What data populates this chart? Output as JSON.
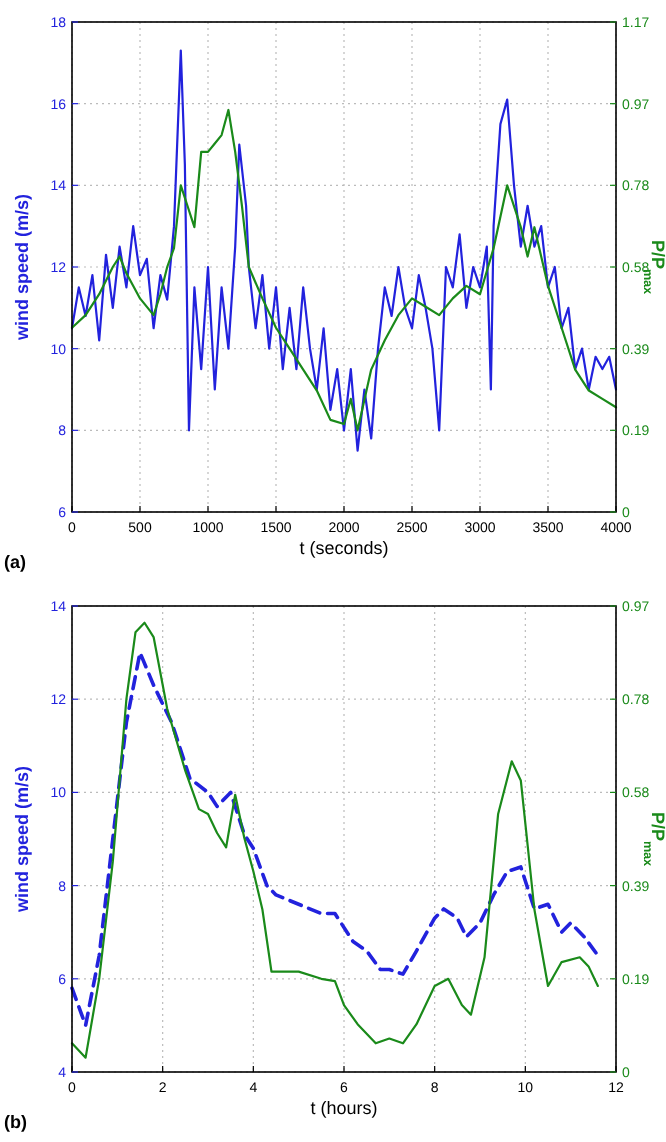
{
  "chart_data": [
    {
      "type": "line",
      "xlabel": "t (seconds)",
      "ylabel": "wind speed (m/s)",
      "y2label": "P/P$_{max}$",
      "annotations": [
        "(a)"
      ],
      "grid": true,
      "xlim": [
        0,
        4000
      ],
      "xticks": [
        0,
        500,
        1000,
        1500,
        2000,
        2500,
        3000,
        3500,
        4000
      ],
      "ylim": [
        6,
        18
      ],
      "yticks": [
        6,
        8,
        10,
        12,
        14,
        16,
        18
      ],
      "y2lim": [
        0,
        1.17
      ],
      "y2ticks": [
        0,
        {
          "value": 0.195,
          "label": "0.19"
        },
        0.39,
        {
          "value": 0.585,
          "label": "0.58"
        },
        0.78,
        {
          "value": 0.975,
          "label": "0.97"
        },
        1.17
      ],
      "series": [
        {
          "color": "#2222dd",
          "line_style": "solid",
          "x": [
            0,
            50,
            100,
            150,
            200,
            250,
            300,
            350,
            400,
            450,
            500,
            550,
            600,
            650,
            700,
            750,
            800,
            830,
            860,
            900,
            950,
            1000,
            1050,
            1100,
            1150,
            1200,
            1230,
            1280,
            1300,
            1350,
            1400,
            1450,
            1500,
            1550,
            1600,
            1650,
            1700,
            1750,
            1800,
            1850,
            1900,
            1950,
            2000,
            2050,
            2100,
            2150,
            2200,
            2250,
            2300,
            2350,
            2400,
            2450,
            2500,
            2550,
            2600,
            2650,
            2700,
            2750,
            2800,
            2850,
            2900,
            2950,
            3000,
            3050,
            3080,
            3100,
            3150,
            3200,
            3250,
            3300,
            3350,
            3400,
            3450,
            3500,
            3550,
            3600,
            3650,
            3700,
            3750,
            3800,
            3850,
            3900,
            3950,
            4000
          ],
          "values": [
            10.5,
            11.5,
            10.8,
            11.8,
            10.2,
            12.3,
            11,
            12.5,
            11.5,
            13,
            11.8,
            12.2,
            10.5,
            11.8,
            11.2,
            13,
            17.3,
            14.5,
            8,
            11.5,
            9.5,
            12,
            9,
            11.5,
            10,
            12.5,
            15,
            13.5,
            12,
            10.5,
            11.8,
            10,
            11.5,
            9.5,
            11,
            9.5,
            11.5,
            10,
            9,
            10.5,
            8.5,
            9.5,
            8,
            9.5,
            7.5,
            9,
            7.8,
            10,
            11.5,
            10.8,
            12,
            11,
            10.5,
            11.8,
            11,
            10,
            8,
            12,
            11.5,
            12.8,
            11,
            12,
            11.5,
            12.5,
            9,
            13,
            15.5,
            16.1,
            14,
            12.5,
            13.5,
            12.5,
            13,
            11.5,
            12,
            10.5,
            11,
            9.5,
            10,
            9,
            9.8,
            9.5,
            9.8,
            9
          ]
        },
        {
          "color": "#1a8a1a",
          "axis": "y2",
          "line_style": "solid",
          "x": [
            0,
            100,
            200,
            300,
            350,
            400,
            500,
            600,
            650,
            700,
            750,
            800,
            850,
            900,
            950,
            1000,
            1050,
            1100,
            1150,
            1200,
            1250,
            1300,
            1400,
            1500,
            1600,
            1700,
            1800,
            1900,
            2000,
            2050,
            2100,
            2200,
            2300,
            2400,
            2500,
            2600,
            2700,
            2800,
            2900,
            3000,
            3100,
            3200,
            3300,
            3350,
            3400,
            3500,
            3600,
            3700,
            3800,
            3900,
            4000
          ],
          "values": [
            0.44,
            0.47,
            0.52,
            0.585,
            0.61,
            0.57,
            0.51,
            0.47,
            0.52,
            0.585,
            0.63,
            0.78,
            0.73,
            0.68,
            0.86,
            0.86,
            0.88,
            0.9,
            0.96,
            0.86,
            0.73,
            0.585,
            0.51,
            0.44,
            0.39,
            0.34,
            0.29,
            0.22,
            0.21,
            0.27,
            0.195,
            0.34,
            0.41,
            0.47,
            0.51,
            0.49,
            0.47,
            0.51,
            0.54,
            0.52,
            0.63,
            0.78,
            0.68,
            0.61,
            0.68,
            0.54,
            0.44,
            0.34,
            0.29,
            0.27,
            0.25
          ]
        }
      ]
    },
    {
      "type": "line",
      "xlabel": "t (hours)",
      "ylabel": "wind speed (m/s)",
      "y2label": "P/P$_{max}$",
      "annotations": [
        "(b)"
      ],
      "grid": true,
      "xlim": [
        0,
        12
      ],
      "xticks": [
        0,
        2,
        4,
        6,
        8,
        10,
        12
      ],
      "ylim": [
        4,
        14
      ],
      "yticks": [
        4,
        6,
        8,
        10,
        12,
        14
      ],
      "y2lim": [
        0,
        0.975
      ],
      "y2ticks": [
        0,
        {
          "value": 0.195,
          "label": "0.19"
        },
        0.39,
        {
          "value": 0.585,
          "label": "0.58"
        },
        0.78,
        {
          "value": 0.975,
          "label": "0.97"
        }
      ],
      "series": [
        {
          "color": "#2222dd",
          "line_style": "dashed",
          "x": [
            0,
            0.3,
            0.6,
            0.9,
            1.2,
            1.5,
            1.8,
            2.2,
            2.6,
            3,
            3.2,
            3.5,
            3.8,
            4,
            4.3,
            4.5,
            5,
            5.5,
            5.8,
            6.2,
            6.5,
            6.8,
            7,
            7.3,
            7.6,
            8,
            8.2,
            8.5,
            8.7,
            9,
            9.3,
            9.6,
            9.9,
            10.2,
            10.5,
            10.8,
            11,
            11.3,
            11.6
          ],
          "values": [
            5.8,
            5,
            6.5,
            9,
            11.5,
            13,
            12.3,
            11.5,
            10.3,
            10,
            9.7,
            10,
            9.1,
            8.8,
            8,
            7.8,
            7.6,
            7.4,
            7.4,
            6.8,
            6.6,
            6.2,
            6.2,
            6.1,
            6.6,
            7.3,
            7.5,
            7.3,
            6.9,
            7.2,
            7.8,
            8.3,
            8.4,
            7.5,
            7.6,
            7,
            7.2,
            6.9,
            6.5
          ]
        },
        {
          "color": "#1a8a1a",
          "axis": "y2",
          "line_style": "solid",
          "x": [
            0,
            0.3,
            0.6,
            0.9,
            1.2,
            1.4,
            1.6,
            1.8,
            2.1,
            2.5,
            2.8,
            3,
            3.2,
            3.4,
            3.6,
            3.8,
            4,
            4.2,
            4.4,
            5,
            5.5,
            5.8,
            6,
            6.3,
            6.7,
            7,
            7.3,
            7.6,
            8,
            8.3,
            8.6,
            8.8,
            9.1,
            9.4,
            9.7,
            9.9,
            10.2,
            10.5,
            10.8,
            11.2,
            11.4,
            11.6
          ],
          "values": [
            0.06,
            0.03,
            0.195,
            0.44,
            0.78,
            0.92,
            0.94,
            0.91,
            0.76,
            0.63,
            0.55,
            0.54,
            0.5,
            0.47,
            0.58,
            0.49,
            0.42,
            0.34,
            0.21,
            0.21,
            0.195,
            0.19,
            0.14,
            0.1,
            0.06,
            0.07,
            0.06,
            0.1,
            0.18,
            0.195,
            0.14,
            0.12,
            0.24,
            0.54,
            0.65,
            0.61,
            0.34,
            0.18,
            0.23,
            0.24,
            0.22,
            0.18
          ]
        }
      ]
    }
  ]
}
